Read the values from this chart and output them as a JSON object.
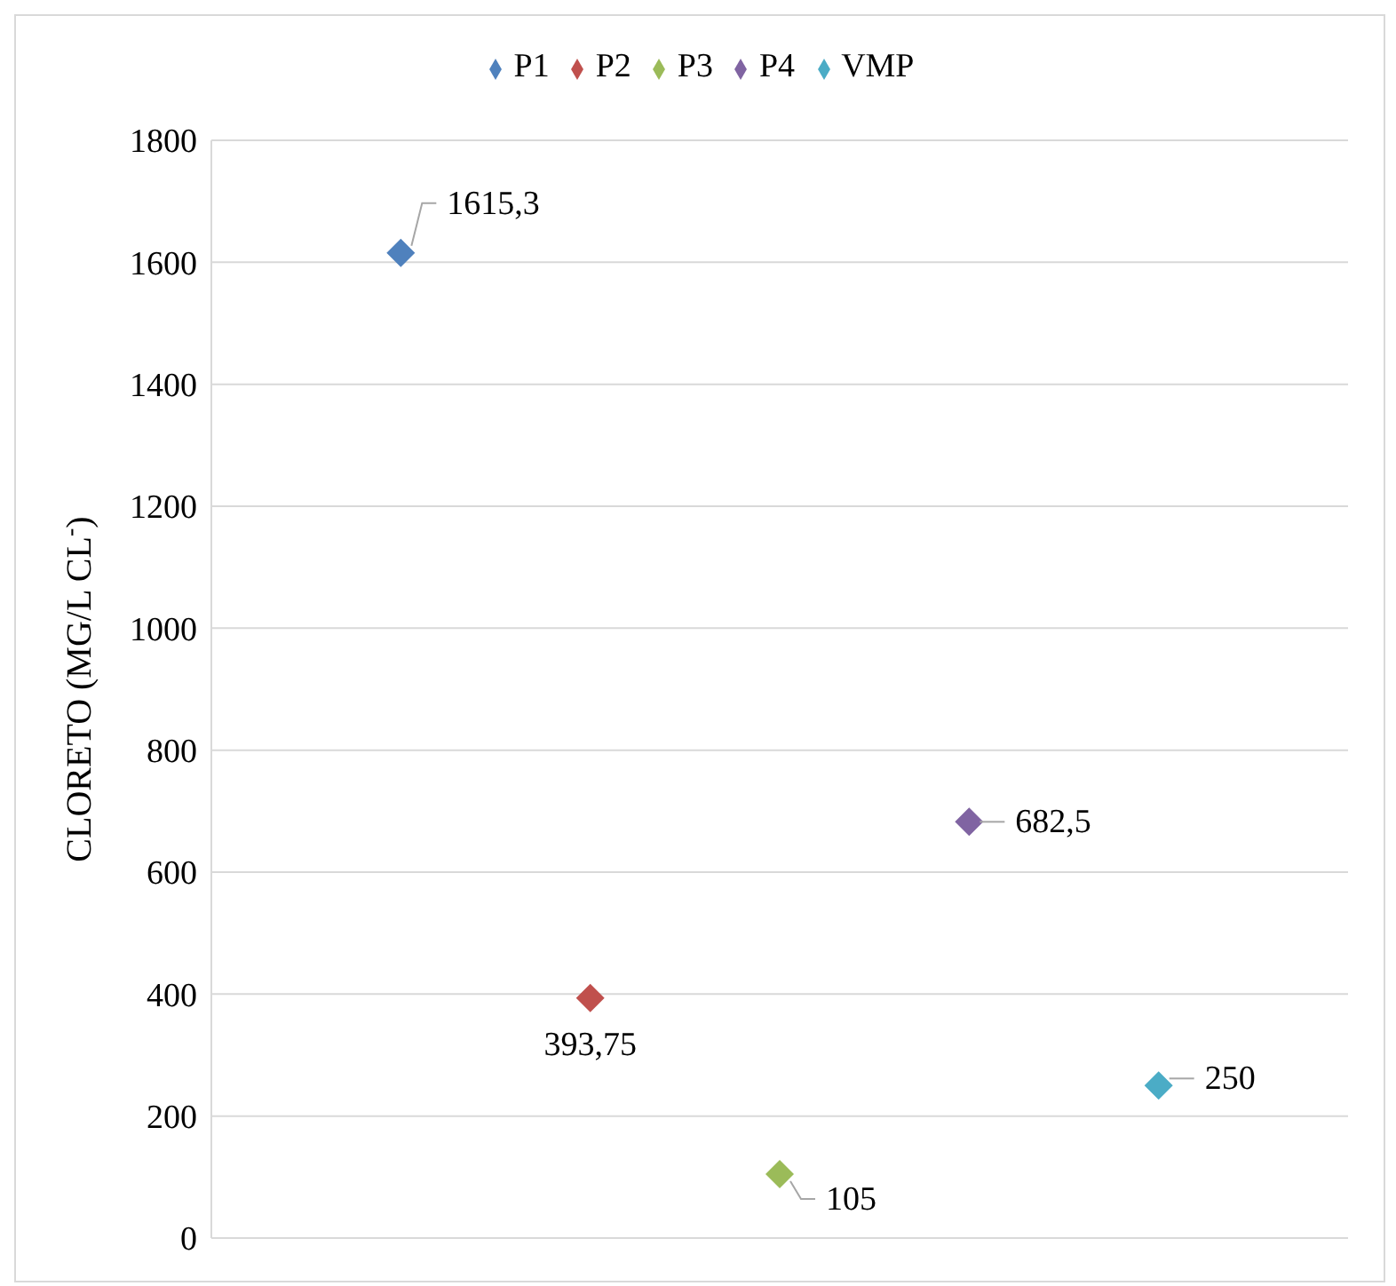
{
  "chart_data": {
    "type": "scatter",
    "ylabel": "CLORETO  (MG/L CL$^{-}$)",
    "categories": [
      null,
      null,
      null,
      null,
      null
    ],
    "series": [
      {
        "name": "P1",
        "color": "#4f81bd",
        "values": [
          1615.3,
          null,
          null,
          null,
          null
        ],
        "value_labels": [
          "1615,3",
          null,
          null,
          null,
          null
        ]
      },
      {
        "name": "P2",
        "color": "#c0504d",
        "values": [
          null,
          393.75,
          null,
          null,
          null
        ],
        "value_labels": [
          null,
          "393,75",
          null,
          null,
          null
        ]
      },
      {
        "name": "P3",
        "color": "#9bbb59",
        "values": [
          null,
          null,
          105,
          null,
          null
        ],
        "value_labels": [
          null,
          null,
          "105",
          null,
          null
        ]
      },
      {
        "name": "P4",
        "color": "#8064a2",
        "values": [
          null,
          null,
          null,
          682.5,
          null
        ],
        "value_labels": [
          null,
          null,
          null,
          "682,5",
          null
        ]
      },
      {
        "name": "VMP",
        "color": "#4bacc6",
        "values": [
          null,
          null,
          null,
          null,
          250
        ],
        "value_labels": [
          null,
          null,
          null,
          null,
          "250"
        ]
      }
    ],
    "ylim": [
      0,
      1800
    ],
    "yticks": [
      0,
      200,
      400,
      600,
      800,
      1000,
      1200,
      1400,
      1600,
      1800
    ],
    "grid": "y",
    "legend": "top",
    "marker": "diamond"
  }
}
